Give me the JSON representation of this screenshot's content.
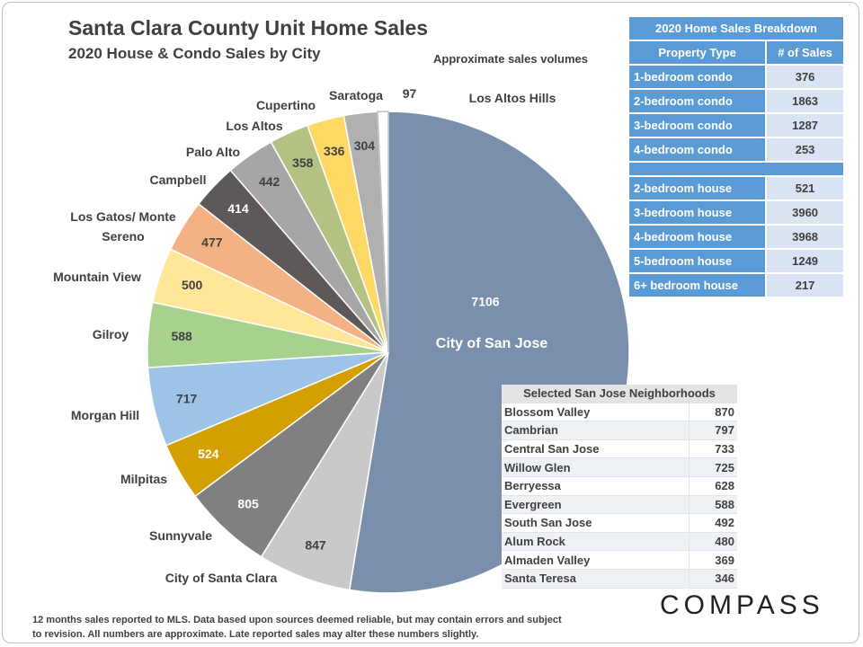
{
  "chart_data": {
    "type": "pie",
    "title": "Santa Clara County Unit Home Sales",
    "subtitle": "2020 House & Condo Sales by City",
    "annotation": "Approximate sales volumes",
    "categories": [
      "City of San Jose",
      "City of Santa Clara",
      "Sunnyvale",
      "Milpitas",
      "Morgan Hill",
      "Gilroy",
      "Mountain View",
      "Los Gatos/ Monte Sereno",
      "Campbell",
      "Palo Alto",
      "Los Altos",
      "Cupertino",
      "Saratoga",
      "Los Altos Hills"
    ],
    "values": [
      7106,
      847,
      805,
      524,
      717,
      588,
      500,
      477,
      414,
      442,
      358,
      336,
      304,
      97
    ],
    "colors": [
      "#7a8fab",
      "#c9c9c9",
      "#808080",
      "#d4a000",
      "#9dc3e6",
      "#a9d18e",
      "#ffe699",
      "#f4b183",
      "#5f5858",
      "#a6a6a6",
      "#b3c283",
      "#ffd966",
      "#b0b0b0",
      "#ffffff"
    ]
  },
  "breakdown_table": {
    "title": "2020 Home Sales Breakdown",
    "headers": [
      "Property Type",
      "# of Sales"
    ],
    "groups": [
      [
        [
          "1-bedroom condo",
          "376"
        ],
        [
          "2-bedroom condo",
          "1863"
        ],
        [
          "3-bedroom condo",
          "1287"
        ],
        [
          "4-bedroom condo",
          "253"
        ]
      ],
      [
        [
          "2-bedroom house",
          "521"
        ],
        [
          "3-bedroom house",
          "3960"
        ],
        [
          "4-bedroom house",
          "3968"
        ],
        [
          "5-bedroom house",
          "1249"
        ],
        [
          "6+ bedroom house",
          "217"
        ]
      ]
    ]
  },
  "neighborhoods_table": {
    "title": "Selected San Jose Neighborhoods",
    "rows": [
      [
        "Blossom Valley",
        "870"
      ],
      [
        "Cambrian",
        "797"
      ],
      [
        "Central San Jose",
        "733"
      ],
      [
        "Willow Glen",
        "725"
      ],
      [
        "Berryessa",
        "628"
      ],
      [
        "Evergreen",
        "588"
      ],
      [
        "South San Jose",
        "492"
      ],
      [
        "Alum Rock",
        "480"
      ],
      [
        "Almaden Valley",
        "369"
      ],
      [
        "Santa Teresa",
        "346"
      ]
    ]
  },
  "footnote": "12 months sales reported to MLS. Data based upon sources deemed reliable, but may contain errors and subject to revision. All numbers are approximate. Late reported sales may alter these numbers slightly.",
  "logo": "COMPASS"
}
